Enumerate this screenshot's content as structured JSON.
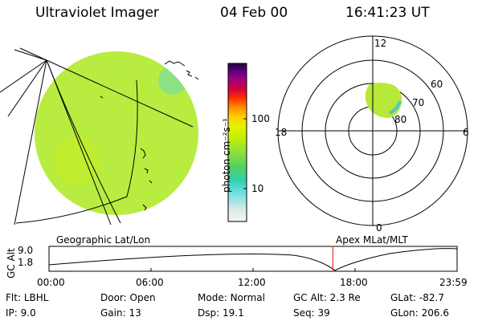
{
  "header": {
    "instrument": "Ultraviolet Imager",
    "date": "04 Feb 00",
    "time": "16:41:23 UT"
  },
  "colorbar": {
    "ticks": [
      "100",
      "10"
    ],
    "unit_label": "photon cm⁻²s⁻¹",
    "colors": [
      "#f5f5f5",
      "#d8e8e8",
      "#70e0e0",
      "#30d0b0",
      "#50d060",
      "#90e040",
      "#c8f000",
      "#e8f000",
      "#ffd000",
      "#ff9000",
      "#ff3000",
      "#d00040",
      "#a00080",
      "#600080",
      "#200040"
    ]
  },
  "polar_plot": {
    "mlt_labels": [
      "12",
      "18",
      "6",
      "0"
    ],
    "lat_labels": [
      "60",
      "70",
      "80"
    ]
  },
  "timeline": {
    "left_label": "Geographic Lat/Lon",
    "right_label": "Apex MLat/MLT",
    "y_axis_title": "GC Alt",
    "y_ticks": [
      "9.0",
      "1.8"
    ],
    "x_ticks": [
      "00:00",
      "06:00",
      "12:00",
      "18:00",
      "23:59"
    ],
    "current_time_fraction": 0.6955
  },
  "info": {
    "flt_label": "Flt:",
    "flt_value": "LBHL",
    "ip_label": "IP:",
    "ip_value": "9.0",
    "door_label": "Door:",
    "door_value": "Open",
    "gain_label": "Gain:",
    "gain_value": "13",
    "mode_label": "Mode:",
    "mode_value": "Normal",
    "dsp_label": "Dsp:",
    "dsp_value": "19.1",
    "gcalt_label": "GC Alt:",
    "gcalt_value": "2.3 Re",
    "seq_label": "Seq:",
    "seq_value": "39",
    "glat_label": "GLat:",
    "glat_value": "-82.7",
    "glon_label": "GLon:",
    "glon_value": "206.6"
  }
}
